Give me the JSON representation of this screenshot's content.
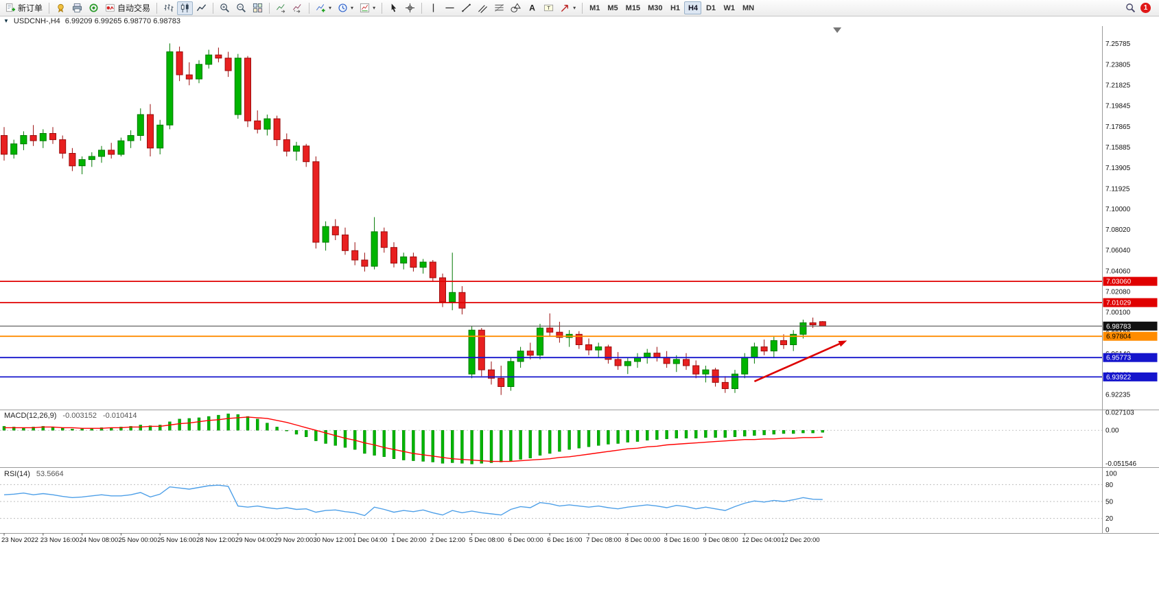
{
  "toolbar": {
    "groups": [
      {
        "items": [
          {
            "name": "new-order",
            "icon": "new-order-icon",
            "label": "新订单"
          }
        ]
      },
      {
        "items": [
          {
            "name": "market-watch",
            "icon": "gold-medal-icon"
          },
          {
            "name": "print",
            "icon": "printer-icon"
          },
          {
            "name": "data-window",
            "icon": "record-icon"
          },
          {
            "name": "auto-trading",
            "icon": "autotrade-icon",
            "label": "自动交易"
          }
        ]
      },
      {
        "items": [
          {
            "name": "bar-chart-mode",
            "icon": "ohlc-bars-icon"
          },
          {
            "name": "candlestick-mode",
            "icon": "candlestick-icon",
            "pressed": true
          },
          {
            "name": "line-chart-mode",
            "icon": "line-chart-icon"
          }
        ]
      },
      {
        "items": [
          {
            "name": "zoom-in",
            "icon": "zoom-in-icon"
          },
          {
            "name": "zoom-out",
            "icon": "zoom-out-icon"
          },
          {
            "name": "tile-windows",
            "icon": "tile-windows-icon"
          }
        ]
      },
      {
        "items": [
          {
            "name": "auto-scroll",
            "icon": "auto-scroll-icon"
          },
          {
            "name": "chart-shift",
            "icon": "chart-shift-icon"
          }
        ]
      },
      {
        "items": [
          {
            "name": "add-indicator",
            "icon": "add-indicator-icon",
            "dropdown": true
          },
          {
            "name": "periods",
            "icon": "clock-icon",
            "dropdown": true
          },
          {
            "name": "templates",
            "icon": "template-icon",
            "dropdown": true
          }
        ]
      },
      {
        "items": [
          {
            "name": "cursor-tool",
            "icon": "cursor-icon"
          },
          {
            "name": "crosshair-tool",
            "icon": "crosshair-icon"
          }
        ]
      },
      {
        "items": [
          {
            "name": "vertical-line-tool",
            "icon": "vline-icon"
          },
          {
            "name": "horizontal-line-tool",
            "icon": "hline-icon"
          },
          {
            "name": "trendline-tool",
            "icon": "trendline-icon"
          },
          {
            "name": "channel-tool",
            "icon": "channel-icon"
          },
          {
            "name": "fibonacci-tool",
            "icon": "fibonacci-icon"
          },
          {
            "name": "shapes-tool",
            "icon": "shapes-icon"
          },
          {
            "name": "text-tool",
            "icon": "text-a-icon"
          },
          {
            "name": "label-tool",
            "icon": "text-label-icon"
          },
          {
            "name": "arrows-tool",
            "icon": "arrow-object-icon",
            "dropdown": true
          }
        ]
      }
    ],
    "timeframes": [
      "M1",
      "M5",
      "M15",
      "M30",
      "H1",
      "H4",
      "D1",
      "W1",
      "MN"
    ],
    "active_timeframe": "H4",
    "notification_count": "1"
  },
  "chart": {
    "symbol_period": "USDCNH-,H4",
    "ohlc": "6.99209 6.99265 6.98770 6.98783"
  },
  "indicators": {
    "macd": {
      "name": "MACD(12,26,9)",
      "value_main": "-0.003152",
      "value_signal": "-0.010414",
      "axis_labels": [
        "0.027103",
        "0.00",
        "-0.051546"
      ]
    },
    "rsi": {
      "name": "RSI(14)",
      "value": "53.5664",
      "axis_labels": [
        "100",
        "80",
        "50",
        "20",
        "0"
      ],
      "levels": [
        80,
        50,
        20
      ]
    }
  },
  "price_axis_labels": [
    "7.25785",
    "7.23805",
    "7.21825",
    "7.19845",
    "7.17865",
    "7.15885",
    "7.13905",
    "7.11925",
    "7.10000",
    "7.08020",
    "7.06040",
    "7.04060",
    "7.02080",
    "7.00100",
    "6.98120",
    "6.96140",
    "6.94160",
    "6.92235"
  ],
  "levels": [
    {
      "label": "7.03060",
      "price": 7.0306,
      "color": "#e00000",
      "text_color": "#ffffff",
      "type": "resistance-line"
    },
    {
      "label": "7.01029",
      "price": 7.01029,
      "color": "#e00000",
      "text_color": "#ffffff",
      "type": "resistance-line"
    },
    {
      "label": "6.98783",
      "price": 6.98783,
      "color": "#555555",
      "tag_color": "#111111",
      "text_color": "#ffffff",
      "type": "current-price-line"
    },
    {
      "label": "6.97804",
      "price": 6.97804,
      "color": "#ff8c00",
      "text_color": "#000000",
      "type": "pivot-line"
    },
    {
      "label": "6.95773",
      "price": 6.95773,
      "color": "#1515cc",
      "text_color": "#ffffff",
      "type": "support-line"
    },
    {
      "label": "6.93922",
      "price": 6.93922,
      "color": "#1515cc",
      "text_color": "#ffffff",
      "type": "support-line"
    }
  ],
  "time_axis": [
    "23 Nov 2022",
    "23 Nov 16:00",
    "24 Nov 08:00",
    "25 Nov 00:00",
    "25 Nov 16:00",
    "28 Nov 12:00",
    "29 Nov 04:00",
    "29 Nov 20:00",
    "30 Nov 12:00",
    "1 Dec 04:00",
    "1 Dec 20:00",
    "2 Dec 12:00",
    "5 Dec 08:00",
    "6 Dec 00:00",
    "6 Dec 16:00",
    "7 Dec 08:00",
    "8 Dec 00:00",
    "8 Dec 16:00",
    "9 Dec 08:00",
    "12 Dec 04:00",
    "12 Dec 20:00"
  ],
  "colors": {
    "bull": "#00b400",
    "bull_stroke": "#007800",
    "bear": "#e82020",
    "bear_stroke": "#9a0c0c",
    "macd_histogram": "#00b400",
    "macd_signal": "#ff0000",
    "rsi_line": "#4d9fe8",
    "arrow": "#dd0000"
  },
  "annotations": {
    "trend_arrow": {
      "from_bar": 77,
      "from_price": 6.935,
      "to_bar": 86.5,
      "to_price": 6.974
    },
    "chart_shift_marker_bar": 85.5
  },
  "chart_data": {
    "type": "candlestick",
    "symbol": "USDCNH-",
    "period": "H4",
    "bars_per_label": 4,
    "y_range_main": [
      6.91,
      7.272
    ],
    "macd_range": [
      -0.0516,
      0.0272
    ],
    "rsi_range": [
      0,
      100
    ],
    "candles": [
      [
        7.17,
        7.178,
        7.146,
        7.152
      ],
      [
        7.152,
        7.166,
        7.148,
        7.162
      ],
      [
        7.162,
        7.174,
        7.156,
        7.17
      ],
      [
        7.17,
        7.18,
        7.16,
        7.165
      ],
      [
        7.165,
        7.176,
        7.158,
        7.172
      ],
      [
        7.172,
        7.178,
        7.162,
        7.166
      ],
      [
        7.166,
        7.17,
        7.148,
        7.153
      ],
      [
        7.153,
        7.158,
        7.136,
        7.141
      ],
      [
        7.141,
        7.15,
        7.133,
        7.147
      ],
      [
        7.147,
        7.154,
        7.14,
        7.15
      ],
      [
        7.15,
        7.16,
        7.144,
        7.156
      ],
      [
        7.156,
        7.163,
        7.148,
        7.152
      ],
      [
        7.152,
        7.168,
        7.15,
        7.165
      ],
      [
        7.165,
        7.175,
        7.158,
        7.17
      ],
      [
        7.17,
        7.196,
        7.165,
        7.19
      ],
      [
        7.19,
        7.2,
        7.15,
        7.158
      ],
      [
        7.158,
        7.185,
        7.152,
        7.18
      ],
      [
        7.18,
        7.258,
        7.176,
        7.25
      ],
      [
        7.25,
        7.255,
        7.222,
        7.228
      ],
      [
        7.228,
        7.24,
        7.218,
        7.224
      ],
      [
        7.224,
        7.242,
        7.22,
        7.238
      ],
      [
        7.238,
        7.252,
        7.234,
        7.247
      ],
      [
        7.247,
        7.254,
        7.24,
        7.244
      ],
      [
        7.244,
        7.25,
        7.226,
        7.232
      ],
      [
        7.19,
        7.248,
        7.186,
        7.244
      ],
      [
        7.244,
        7.246,
        7.178,
        7.184
      ],
      [
        7.184,
        7.194,
        7.172,
        7.176
      ],
      [
        7.176,
        7.19,
        7.17,
        7.186
      ],
      [
        7.186,
        7.189,
        7.16,
        7.166
      ],
      [
        7.166,
        7.172,
        7.15,
        7.155
      ],
      [
        7.155,
        7.164,
        7.146,
        7.16
      ],
      [
        7.16,
        7.162,
        7.14,
        7.145
      ],
      [
        7.145,
        7.15,
        7.062,
        7.068
      ],
      [
        7.068,
        7.088,
        7.06,
        7.083
      ],
      [
        7.083,
        7.09,
        7.07,
        7.075
      ],
      [
        7.075,
        7.082,
        7.056,
        7.06
      ],
      [
        7.06,
        7.068,
        7.046,
        7.051
      ],
      [
        7.051,
        7.058,
        7.04,
        7.045
      ],
      [
        7.045,
        7.092,
        7.042,
        7.078
      ],
      [
        7.078,
        7.082,
        7.058,
        7.063
      ],
      [
        7.063,
        7.068,
        7.044,
        7.048
      ],
      [
        7.048,
        7.058,
        7.042,
        7.054
      ],
      [
        7.054,
        7.058,
        7.04,
        7.044
      ],
      [
        7.044,
        7.052,
        7.038,
        7.049
      ],
      [
        7.049,
        7.051,
        7.03,
        7.034
      ],
      [
        7.034,
        7.038,
        7.006,
        7.011
      ],
      [
        7.011,
        7.058,
        7.003,
        7.02
      ],
      [
        7.02,
        7.026,
        6.999,
        7.005
      ],
      [
        6.942,
        6.988,
        6.938,
        6.984
      ],
      [
        6.984,
        6.986,
        6.94,
        6.946
      ],
      [
        6.946,
        6.954,
        6.932,
        6.938
      ],
      [
        6.938,
        6.95,
        6.922,
        6.93
      ],
      [
        6.93,
        6.958,
        6.926,
        6.954
      ],
      [
        6.954,
        6.968,
        6.948,
        6.964
      ],
      [
        6.964,
        6.972,
        6.956,
        6.96
      ],
      [
        6.96,
        6.99,
        6.956,
        6.986
      ],
      [
        6.986,
        7.0,
        6.978,
        6.982
      ],
      [
        6.982,
        6.992,
        6.972,
        6.977
      ],
      [
        6.977,
        6.984,
        6.968,
        6.98
      ],
      [
        6.98,
        6.983,
        6.966,
        6.97
      ],
      [
        6.97,
        6.976,
        6.96,
        6.965
      ],
      [
        6.965,
        6.972,
        6.958,
        6.968
      ],
      [
        6.968,
        6.97,
        6.952,
        6.956
      ],
      [
        6.956,
        6.963,
        6.946,
        6.95
      ],
      [
        6.95,
        6.958,
        6.942,
        6.954
      ],
      [
        6.954,
        6.962,
        6.948,
        6.958
      ],
      [
        6.958,
        6.966,
        6.952,
        6.962
      ],
      [
        6.962,
        6.968,
        6.954,
        6.958
      ],
      [
        6.958,
        6.964,
        6.948,
        6.952
      ],
      [
        6.952,
        6.96,
        6.944,
        6.956
      ],
      [
        6.956,
        6.962,
        6.946,
        6.95
      ],
      [
        6.95,
        6.955,
        6.938,
        6.942
      ],
      [
        6.942,
        6.95,
        6.934,
        6.946
      ],
      [
        6.946,
        6.948,
        6.93,
        6.934
      ],
      [
        6.934,
        6.94,
        6.924,
        6.928
      ],
      [
        6.928,
        6.946,
        6.924,
        6.942
      ],
      [
        6.942,
        6.962,
        6.938,
        6.958
      ],
      [
        6.958,
        6.972,
        6.952,
        6.968
      ],
      [
        6.968,
        6.975,
        6.96,
        6.964
      ],
      [
        6.964,
        6.978,
        6.958,
        6.974
      ],
      [
        6.974,
        6.98,
        6.966,
        6.97
      ],
      [
        6.97,
        6.984,
        6.964,
        6.98
      ],
      [
        6.98,
        6.994,
        6.976,
        6.991
      ],
      [
        6.991,
        6.996,
        6.986,
        6.989
      ],
      [
        6.99209,
        6.99265,
        6.9877,
        6.98783
      ]
    ],
    "macd_histogram": [
      0.006,
      0.005,
      0.004,
      0.005,
      0.006,
      0.005,
      0.003,
      0.002,
      0.002,
      0.003,
      0.004,
      0.004,
      0.005,
      0.006,
      0.008,
      0.007,
      0.008,
      0.013,
      0.017,
      0.018,
      0.019,
      0.021,
      0.023,
      0.025,
      0.024,
      0.021,
      0.017,
      0.011,
      0.005,
      0.0,
      -0.006,
      -0.01,
      -0.016,
      -0.02,
      -0.023,
      -0.026,
      -0.029,
      -0.035,
      -0.038,
      -0.04,
      -0.043,
      -0.045,
      -0.046,
      -0.047,
      -0.048,
      -0.05,
      -0.049,
      -0.05,
      -0.051,
      -0.05,
      -0.049,
      -0.048,
      -0.046,
      -0.044,
      -0.042,
      -0.038,
      -0.035,
      -0.032,
      -0.029,
      -0.027,
      -0.025,
      -0.023,
      -0.021,
      -0.02,
      -0.018,
      -0.017,
      -0.015,
      -0.014,
      -0.013,
      -0.012,
      -0.012,
      -0.012,
      -0.011,
      -0.011,
      -0.011,
      -0.01,
      -0.009,
      -0.008,
      -0.007,
      -0.006,
      -0.005,
      -0.005,
      -0.004,
      -0.004,
      -0.003152
    ],
    "macd_signal": [
      0.004,
      0.004,
      0.004,
      0.004,
      0.005,
      0.005,
      0.004,
      0.004,
      0.003,
      0.003,
      0.003,
      0.004,
      0.004,
      0.005,
      0.005,
      0.006,
      0.006,
      0.008,
      0.01,
      0.011,
      0.013,
      0.015,
      0.016,
      0.018,
      0.019,
      0.02,
      0.019,
      0.018,
      0.015,
      0.012,
      0.008,
      0.004,
      0.0,
      -0.004,
      -0.008,
      -0.012,
      -0.015,
      -0.019,
      -0.022,
      -0.026,
      -0.029,
      -0.032,
      -0.035,
      -0.037,
      -0.039,
      -0.041,
      -0.043,
      -0.044,
      -0.045,
      -0.046,
      -0.047,
      -0.047,
      -0.047,
      -0.046,
      -0.045,
      -0.044,
      -0.043,
      -0.041,
      -0.04,
      -0.038,
      -0.036,
      -0.034,
      -0.032,
      -0.03,
      -0.028,
      -0.027,
      -0.025,
      -0.024,
      -0.022,
      -0.021,
      -0.02,
      -0.019,
      -0.018,
      -0.017,
      -0.016,
      -0.015,
      -0.014,
      -0.014,
      -0.013,
      -0.013,
      -0.012,
      -0.012,
      -0.011,
      -0.011,
      -0.010414
    ],
    "rsi": [
      62,
      63,
      65,
      62,
      64,
      62,
      59,
      57,
      58,
      60,
      62,
      60,
      60,
      62,
      66,
      58,
      63,
      76,
      74,
      72,
      75,
      78,
      79,
      77,
      42,
      40,
      42,
      39,
      37,
      39,
      36,
      37,
      31,
      34,
      35,
      32,
      30,
      25,
      40,
      36,
      31,
      34,
      32,
      35,
      30,
      26,
      34,
      30,
      33,
      30,
      28,
      26,
      36,
      41,
      39,
      48,
      46,
      42,
      44,
      42,
      40,
      42,
      39,
      37,
      40,
      42,
      44,
      42,
      39,
      43,
      41,
      37,
      40,
      37,
      34,
      41,
      47,
      51,
      49,
      52,
      50,
      53,
      57,
      54,
      53.5664
    ]
  }
}
